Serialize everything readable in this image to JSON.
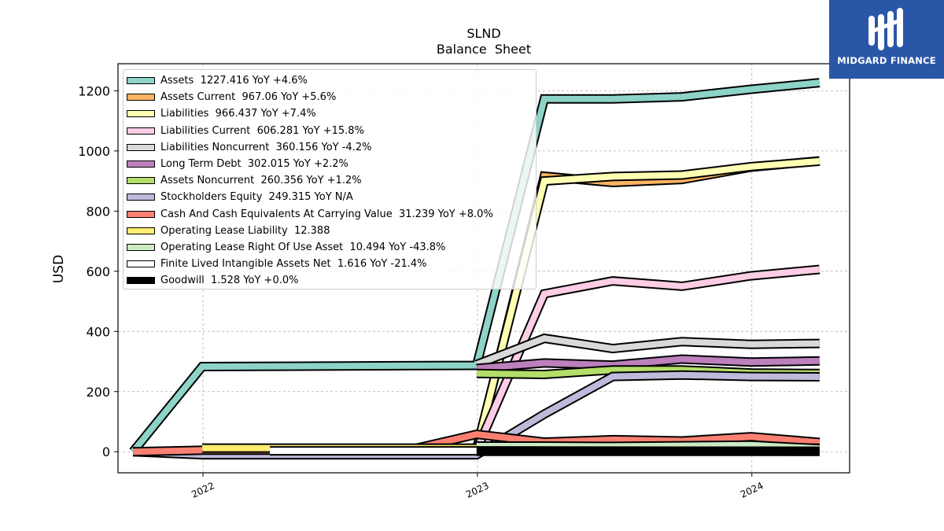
{
  "brand": {
    "name": "MIDGARD FINANCE",
    "logo_icon": "mf-monogram-icon",
    "color": "#2a56a8"
  },
  "chart_data": {
    "type": "line",
    "title": "SLND",
    "subtitle": "Balance  Sheet",
    "xlabel": "",
    "ylabel": "USD",
    "xlim": [
      "2021-09-10",
      "2024-05-10"
    ],
    "ylim": [
      -70,
      1290
    ],
    "x_ticks": [
      "2022",
      "2023",
      "2024"
    ],
    "y_ticks": [
      0,
      200,
      400,
      600,
      800,
      1000,
      1200
    ],
    "grid": true,
    "legend_position": "top-left",
    "series": [
      {
        "name": "Assets  1227.416 YoY +4.6%",
        "color": "#8dd3c7",
        "x": [
          "2021-09-30",
          "2021-12-31",
          "2022-12-31",
          "2023-03-31",
          "2023-06-30",
          "2023-09-30",
          "2023-12-31",
          "2024-03-31"
        ],
        "y": [
          0,
          283,
          287,
          1173,
          1173,
          1180,
          1205,
          1227
        ]
      },
      {
        "name": "Assets Current  967.06 YoY +5.6%",
        "color": "#fdb462",
        "x": [
          "2022-12-31",
          "2023-03-31",
          "2023-06-30",
          "2023-09-30",
          "2023-12-31",
          "2024-03-31"
        ],
        "y": [
          5,
          916,
          895,
          905,
          946,
          967
        ]
      },
      {
        "name": "Liabilities  966.437 YoY +7.4%",
        "color": "#ffffb3",
        "x": [
          "2022-12-31",
          "2023-03-31",
          "2023-06-30",
          "2023-09-30",
          "2023-12-31",
          "2024-03-31"
        ],
        "y": [
          10,
          900,
          915,
          920,
          948,
          966
        ]
      },
      {
        "name": "Liabilities Current  606.281 YoY +15.8%",
        "color": "#fccde5",
        "x": [
          "2022-12-31",
          "2023-03-31",
          "2023-06-30",
          "2023-09-30",
          "2023-12-31",
          "2024-03-31"
        ],
        "y": [
          5,
          525,
          568,
          550,
          585,
          606
        ]
      },
      {
        "name": "Liabilities Noncurrent  360.156 YoY -4.2%",
        "color": "#d9d9d9",
        "x": [
          "2022-12-31",
          "2023-03-31",
          "2023-06-30",
          "2023-09-30",
          "2023-12-31",
          "2024-03-31"
        ],
        "y": [
          290,
          377,
          343,
          366,
          357,
          360
        ]
      },
      {
        "name": "Long Term Debt  302.015 YoY +2.2%",
        "color": "#bc80bd",
        "x": [
          "2022-12-31",
          "2023-03-31",
          "2023-06-30",
          "2023-09-30",
          "2023-12-31",
          "2024-03-31"
        ],
        "y": [
          277,
          295,
          288,
          308,
          298,
          302
        ]
      },
      {
        "name": "Assets Noncurrent  260.356 YoY +1.2%",
        "color": "#b3de69",
        "x": [
          "2022-12-31",
          "2023-03-31",
          "2023-06-30",
          "2023-09-30",
          "2023-12-31",
          "2024-03-31"
        ],
        "y": [
          260,
          257,
          272,
          272,
          262,
          260
        ]
      },
      {
        "name": "Stockholders Equity  249.315 YoY N/A",
        "color": "#bebada",
        "x": [
          "2021-09-30",
          "2021-12-31",
          "2022-12-31",
          "2023-03-31",
          "2023-06-30",
          "2023-09-30",
          "2023-12-31",
          "2024-03-31"
        ],
        "y": [
          0,
          -10,
          -10,
          125,
          250,
          255,
          250,
          249
        ]
      },
      {
        "name": "Cash And Cash Equivalents At Carrying Value  31.239 YoY +8.0%",
        "color": "#fb8072",
        "x": [
          "2021-09-30",
          "2021-12-31",
          "2022-09-30",
          "2022-12-31",
          "2023-03-31",
          "2023-06-30",
          "2023-09-30",
          "2023-12-31",
          "2024-03-31"
        ],
        "y": [
          0,
          5,
          5,
          58,
          32,
          40,
          36,
          50,
          31
        ]
      },
      {
        "name": "Operating Lease Liability  12.388",
        "color": "#ffed6f",
        "x": [
          "2021-12-31",
          "2022-12-31",
          "2023-03-31",
          "2023-06-30",
          "2023-09-30",
          "2023-12-31",
          "2024-03-31"
        ],
        "y": [
          12,
          12,
          12,
          12,
          12,
          12,
          12
        ]
      },
      {
        "name": "Operating Lease Right Of Use Asset  10.494 YoY -43.8%",
        "color": "#ccebc5",
        "x": [
          "2022-12-31",
          "2023-03-31",
          "2023-06-30",
          "2023-09-30",
          "2023-12-31",
          "2024-03-31"
        ],
        "y": [
          19,
          19,
          18,
          20,
          22,
          10.5
        ]
      },
      {
        "name": "Finite Lived Intangible Assets Net  1.616 YoY -21.4%",
        "color": "#ffffff",
        "x": [
          "2022-03-31",
          "2022-12-31",
          "2023-03-31",
          "2023-06-30",
          "2023-09-30",
          "2023-12-31",
          "2024-03-31"
        ],
        "y": [
          3,
          3,
          2.5,
          2.2,
          2,
          1.8,
          1.6
        ]
      },
      {
        "name": "Goodwill  1.528 YoY +0.0%",
        "color": "#000000",
        "x": [
          "2022-12-31",
          "2023-03-31",
          "2023-06-30",
          "2023-09-30",
          "2023-12-31",
          "2024-03-31"
        ],
        "y": [
          1.5,
          1.5,
          1.5,
          1.5,
          1.5,
          1.528
        ]
      }
    ]
  }
}
